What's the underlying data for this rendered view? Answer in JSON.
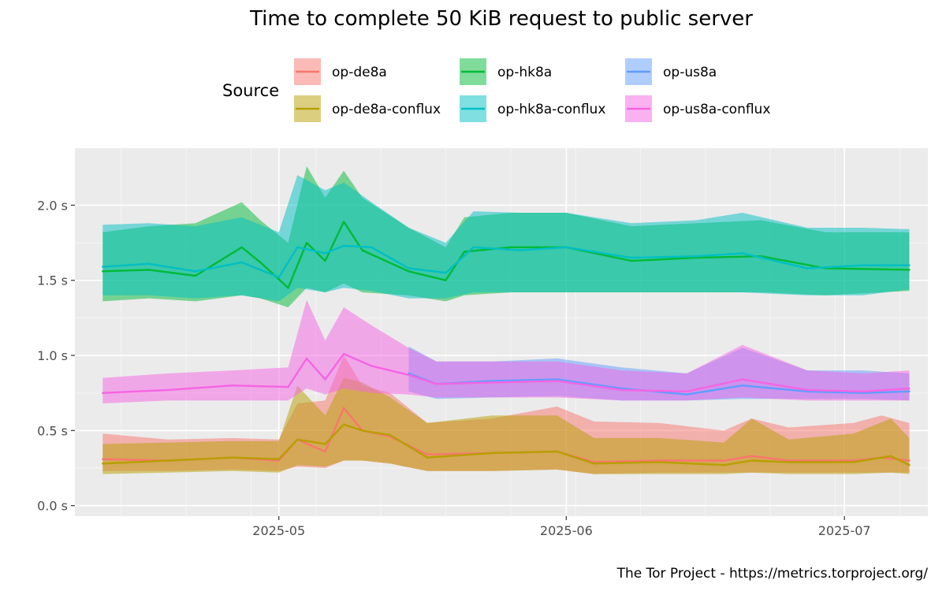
{
  "chart_data": {
    "type": "line",
    "title": "Time to complete 50 KiB request to public server",
    "caption": "The Tor Project - https://metrics.torproject.org/",
    "legend": {
      "title": "Source",
      "position": "top"
    },
    "xlabel": "",
    "ylabel": "",
    "x_axis": {
      "type": "date",
      "range": [
        "2025-04-09",
        "2025-07-10"
      ],
      "ticks": [
        {
          "value": "2025-05-01",
          "label": "2025-05"
        },
        {
          "value": "2025-06-01",
          "label": "2025-06"
        },
        {
          "value": "2025-07-01",
          "label": "2025-07"
        }
      ]
    },
    "y_axis": {
      "range": [
        -0.07,
        2.38
      ],
      "unit": "s",
      "ticks": [
        {
          "value": 0.0,
          "label": "0.0 s"
        },
        {
          "value": 0.5,
          "label": "0.5 s"
        },
        {
          "value": 1.0,
          "label": "1.0 s"
        },
        {
          "value": 1.5,
          "label": "1.5 s"
        },
        {
          "value": 2.0,
          "label": "2.0 s"
        }
      ]
    },
    "grid": true,
    "background": "#ebebeb",
    "series": [
      {
        "name": "op-de8a",
        "color": "#f8766d",
        "points": [
          {
            "x": "2025-04-12",
            "y": 0.31,
            "low": 0.23,
            "high": 0.48
          },
          {
            "x": "2025-04-19",
            "y": 0.3,
            "low": 0.23,
            "high": 0.44
          },
          {
            "x": "2025-04-26",
            "y": 0.32,
            "low": 0.24,
            "high": 0.45
          },
          {
            "x": "2025-05-01",
            "y": 0.3,
            "low": 0.23,
            "high": 0.44
          },
          {
            "x": "2025-05-03",
            "y": 0.44,
            "low": 0.26,
            "high": 0.68
          },
          {
            "x": "2025-05-06",
            "y": 0.36,
            "low": 0.25,
            "high": 0.7
          },
          {
            "x": "2025-05-08",
            "y": 0.65,
            "low": 0.3,
            "high": 1.0
          },
          {
            "x": "2025-05-10",
            "y": 0.5,
            "low": 0.3,
            "high": 0.8
          },
          {
            "x": "2025-05-13",
            "y": 0.46,
            "low": 0.28,
            "high": 0.75
          },
          {
            "x": "2025-05-17",
            "y": 0.34,
            "low": 0.23,
            "high": 0.55
          },
          {
            "x": "2025-05-24",
            "y": 0.35,
            "low": 0.23,
            "high": 0.58
          },
          {
            "x": "2025-05-31",
            "y": 0.36,
            "low": 0.24,
            "high": 0.66
          },
          {
            "x": "2025-06-04",
            "y": 0.29,
            "low": 0.21,
            "high": 0.56
          },
          {
            "x": "2025-06-11",
            "y": 0.3,
            "low": 0.22,
            "high": 0.55
          },
          {
            "x": "2025-06-18",
            "y": 0.3,
            "low": 0.22,
            "high": 0.5
          },
          {
            "x": "2025-06-21",
            "y": 0.33,
            "low": 0.22,
            "high": 0.58
          },
          {
            "x": "2025-06-25",
            "y": 0.3,
            "low": 0.22,
            "high": 0.52
          },
          {
            "x": "2025-07-02",
            "y": 0.3,
            "low": 0.22,
            "high": 0.55
          },
          {
            "x": "2025-07-05",
            "y": 0.32,
            "low": 0.22,
            "high": 0.6
          },
          {
            "x": "2025-07-08",
            "y": 0.3,
            "low": 0.22,
            "high": 0.55
          }
        ]
      },
      {
        "name": "op-de8a-conflux",
        "color": "#b79f00",
        "points": [
          {
            "x": "2025-04-12",
            "y": 0.28,
            "low": 0.21,
            "high": 0.41
          },
          {
            "x": "2025-04-19",
            "y": 0.3,
            "low": 0.22,
            "high": 0.42
          },
          {
            "x": "2025-04-26",
            "y": 0.32,
            "low": 0.23,
            "high": 0.43
          },
          {
            "x": "2025-05-01",
            "y": 0.31,
            "low": 0.22,
            "high": 0.43
          },
          {
            "x": "2025-05-03",
            "y": 0.44,
            "low": 0.27,
            "high": 0.8
          },
          {
            "x": "2025-05-06",
            "y": 0.41,
            "low": 0.26,
            "high": 0.6
          },
          {
            "x": "2025-05-08",
            "y": 0.54,
            "low": 0.3,
            "high": 0.85
          },
          {
            "x": "2025-05-10",
            "y": 0.5,
            "low": 0.3,
            "high": 0.82
          },
          {
            "x": "2025-05-13",
            "y": 0.47,
            "low": 0.28,
            "high": 0.72
          },
          {
            "x": "2025-05-17",
            "y": 0.32,
            "low": 0.23,
            "high": 0.55
          },
          {
            "x": "2025-05-24",
            "y": 0.35,
            "low": 0.23,
            "high": 0.6
          },
          {
            "x": "2025-05-31",
            "y": 0.36,
            "low": 0.24,
            "high": 0.6
          },
          {
            "x": "2025-06-04",
            "y": 0.28,
            "low": 0.21,
            "high": 0.45
          },
          {
            "x": "2025-06-11",
            "y": 0.29,
            "low": 0.21,
            "high": 0.45
          },
          {
            "x": "2025-06-18",
            "y": 0.27,
            "low": 0.21,
            "high": 0.42
          },
          {
            "x": "2025-06-21",
            "y": 0.3,
            "low": 0.22,
            "high": 0.58
          },
          {
            "x": "2025-06-25",
            "y": 0.29,
            "low": 0.21,
            "high": 0.44
          },
          {
            "x": "2025-07-02",
            "y": 0.29,
            "low": 0.21,
            "high": 0.48
          },
          {
            "x": "2025-07-06",
            "y": 0.33,
            "low": 0.22,
            "high": 0.58
          },
          {
            "x": "2025-07-08",
            "y": 0.27,
            "low": 0.21,
            "high": 0.45
          }
        ]
      },
      {
        "name": "op-hk8a",
        "color": "#00ba38",
        "points": [
          {
            "x": "2025-04-12",
            "y": 1.56,
            "low": 1.36,
            "high": 1.82
          },
          {
            "x": "2025-04-17",
            "y": 1.57,
            "low": 1.38,
            "high": 1.86
          },
          {
            "x": "2025-04-22",
            "y": 1.53,
            "low": 1.36,
            "high": 1.88
          },
          {
            "x": "2025-04-27",
            "y": 1.72,
            "low": 1.4,
            "high": 2.02
          },
          {
            "x": "2025-04-29",
            "y": 1.62,
            "low": 1.38,
            "high": 1.9
          },
          {
            "x": "2025-05-02",
            "y": 1.45,
            "low": 1.32,
            "high": 1.75
          },
          {
            "x": "2025-05-04",
            "y": 1.75,
            "low": 1.45,
            "high": 2.26
          },
          {
            "x": "2025-05-06",
            "y": 1.63,
            "low": 1.42,
            "high": 2.05
          },
          {
            "x": "2025-05-08",
            "y": 1.89,
            "low": 1.48,
            "high": 2.23
          },
          {
            "x": "2025-05-10",
            "y": 1.7,
            "low": 1.42,
            "high": 2.05
          },
          {
            "x": "2025-05-15",
            "y": 1.56,
            "low": 1.4,
            "high": 1.85
          },
          {
            "x": "2025-05-19",
            "y": 1.5,
            "low": 1.36,
            "high": 1.72
          },
          {
            "x": "2025-05-21",
            "y": 1.69,
            "low": 1.4,
            "high": 1.92
          },
          {
            "x": "2025-05-26",
            "y": 1.72,
            "low": 1.42,
            "high": 1.95
          },
          {
            "x": "2025-06-01",
            "y": 1.72,
            "low": 1.42,
            "high": 1.95
          },
          {
            "x": "2025-06-08",
            "y": 1.63,
            "low": 1.42,
            "high": 1.86
          },
          {
            "x": "2025-06-15",
            "y": 1.65,
            "low": 1.42,
            "high": 1.88
          },
          {
            "x": "2025-06-22",
            "y": 1.66,
            "low": 1.42,
            "high": 1.9
          },
          {
            "x": "2025-06-29",
            "y": 1.58,
            "low": 1.4,
            "high": 1.82
          },
          {
            "x": "2025-07-08",
            "y": 1.57,
            "low": 1.43,
            "high": 1.82
          }
        ]
      },
      {
        "name": "op-hk8a-conflux",
        "color": "#00bfc4",
        "points": [
          {
            "x": "2025-04-12",
            "y": 1.59,
            "low": 1.4,
            "high": 1.87
          },
          {
            "x": "2025-04-17",
            "y": 1.61,
            "low": 1.4,
            "high": 1.88
          },
          {
            "x": "2025-04-22",
            "y": 1.56,
            "low": 1.38,
            "high": 1.86
          },
          {
            "x": "2025-04-27",
            "y": 1.62,
            "low": 1.4,
            "high": 1.92
          },
          {
            "x": "2025-05-01",
            "y": 1.52,
            "low": 1.36,
            "high": 1.82
          },
          {
            "x": "2025-05-03",
            "y": 1.72,
            "low": 1.45,
            "high": 2.2
          },
          {
            "x": "2025-05-06",
            "y": 1.68,
            "low": 1.42,
            "high": 2.1
          },
          {
            "x": "2025-05-08",
            "y": 1.73,
            "low": 1.45,
            "high": 2.15
          },
          {
            "x": "2025-05-11",
            "y": 1.72,
            "low": 1.43,
            "high": 2.02
          },
          {
            "x": "2025-05-15",
            "y": 1.58,
            "low": 1.38,
            "high": 1.85
          },
          {
            "x": "2025-05-19",
            "y": 1.55,
            "low": 1.38,
            "high": 1.75
          },
          {
            "x": "2025-05-22",
            "y": 1.72,
            "low": 1.42,
            "high": 1.96
          },
          {
            "x": "2025-05-27",
            "y": 1.7,
            "low": 1.42,
            "high": 1.95
          },
          {
            "x": "2025-06-01",
            "y": 1.72,
            "low": 1.42,
            "high": 1.95
          },
          {
            "x": "2025-06-08",
            "y": 1.65,
            "low": 1.42,
            "high": 1.88
          },
          {
            "x": "2025-06-15",
            "y": 1.66,
            "low": 1.42,
            "high": 1.9
          },
          {
            "x": "2025-06-20",
            "y": 1.68,
            "low": 1.42,
            "high": 1.95
          },
          {
            "x": "2025-06-27",
            "y": 1.58,
            "low": 1.4,
            "high": 1.85
          },
          {
            "x": "2025-07-03",
            "y": 1.6,
            "low": 1.4,
            "high": 1.85
          },
          {
            "x": "2025-07-08",
            "y": 1.6,
            "low": 1.44,
            "high": 1.84
          }
        ]
      },
      {
        "name": "op-us8a",
        "color": "#619cff",
        "points": [
          {
            "x": "2025-05-15",
            "y": 0.88,
            "low": 0.76,
            "high": 1.06
          },
          {
            "x": "2025-05-18",
            "y": 0.81,
            "low": 0.71,
            "high": 0.96
          },
          {
            "x": "2025-05-24",
            "y": 0.83,
            "low": 0.72,
            "high": 0.96
          },
          {
            "x": "2025-05-31",
            "y": 0.84,
            "low": 0.73,
            "high": 0.98
          },
          {
            "x": "2025-06-07",
            "y": 0.78,
            "low": 0.7,
            "high": 0.92
          },
          {
            "x": "2025-06-14",
            "y": 0.74,
            "low": 0.7,
            "high": 0.88
          },
          {
            "x": "2025-06-20",
            "y": 0.8,
            "low": 0.71,
            "high": 1.05
          },
          {
            "x": "2025-06-27",
            "y": 0.76,
            "low": 0.71,
            "high": 0.9
          },
          {
            "x": "2025-07-03",
            "y": 0.75,
            "low": 0.71,
            "high": 0.9
          },
          {
            "x": "2025-07-08",
            "y": 0.76,
            "low": 0.7,
            "high": 0.88
          }
        ]
      },
      {
        "name": "op-us8a-conflux",
        "color": "#f564e3",
        "points": [
          {
            "x": "2025-04-12",
            "y": 0.75,
            "low": 0.68,
            "high": 0.85
          },
          {
            "x": "2025-04-19",
            "y": 0.77,
            "low": 0.7,
            "high": 0.88
          },
          {
            "x": "2025-04-26",
            "y": 0.8,
            "low": 0.7,
            "high": 0.9
          },
          {
            "x": "2025-05-02",
            "y": 0.79,
            "low": 0.7,
            "high": 0.92
          },
          {
            "x": "2025-05-04",
            "y": 0.98,
            "low": 0.78,
            "high": 1.37
          },
          {
            "x": "2025-05-06",
            "y": 0.84,
            "low": 0.74,
            "high": 1.1
          },
          {
            "x": "2025-05-08",
            "y": 1.01,
            "low": 0.78,
            "high": 1.32
          },
          {
            "x": "2025-05-11",
            "y": 0.93,
            "low": 0.75,
            "high": 1.2
          },
          {
            "x": "2025-05-15",
            "y": 0.87,
            "low": 0.74,
            "high": 1.05
          },
          {
            "x": "2025-05-18",
            "y": 0.81,
            "low": 0.72,
            "high": 0.96
          },
          {
            "x": "2025-05-24",
            "y": 0.82,
            "low": 0.72,
            "high": 0.96
          },
          {
            "x": "2025-05-31",
            "y": 0.83,
            "low": 0.72,
            "high": 0.96
          },
          {
            "x": "2025-06-07",
            "y": 0.77,
            "low": 0.7,
            "high": 0.9
          },
          {
            "x": "2025-06-14",
            "y": 0.76,
            "low": 0.7,
            "high": 0.88
          },
          {
            "x": "2025-06-20",
            "y": 0.84,
            "low": 0.72,
            "high": 1.07
          },
          {
            "x": "2025-06-27",
            "y": 0.77,
            "low": 0.7,
            "high": 0.9
          },
          {
            "x": "2025-07-03",
            "y": 0.76,
            "low": 0.7,
            "high": 0.88
          },
          {
            "x": "2025-07-08",
            "y": 0.78,
            "low": 0.7,
            "high": 0.9
          }
        ]
      }
    ]
  }
}
